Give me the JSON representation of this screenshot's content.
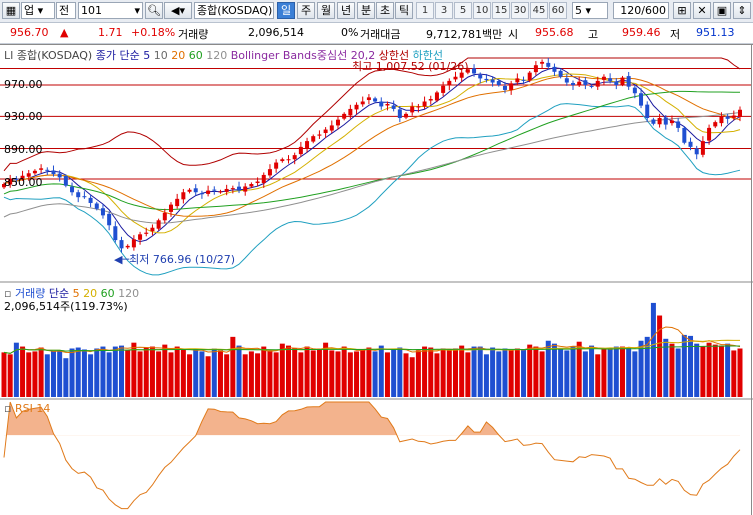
{
  "toolbar": {
    "market_label": "업",
    "prev_label": "전",
    "code_value": "101",
    "name_value": "종합(KOSDAQ)",
    "period_tabs": [
      {
        "label": "일",
        "active": true
      },
      {
        "label": "주",
        "active": false
      },
      {
        "label": "월",
        "active": false
      },
      {
        "label": "년",
        "active": false
      },
      {
        "label": "분",
        "active": false
      },
      {
        "label": "초",
        "active": false
      },
      {
        "label": "틱",
        "active": false
      }
    ],
    "interval_buttons": [
      "1",
      "3",
      "5",
      "10",
      "15",
      "30",
      "45",
      "60"
    ],
    "interval_input": "5",
    "count_value": "120/600",
    "icon_names": [
      "grid-icon",
      "wrench-icon",
      "save-icon",
      "scroll-icon"
    ]
  },
  "quote": {
    "price": "956.70",
    "change_arrow": "▲",
    "change": "1.71",
    "change_pct": "+0.18%",
    "volume_label": "거래량",
    "volume_value": "2,096,514",
    "volume_pct": "0%",
    "amount_label": "거래대금",
    "amount_value": "9,712,781백만",
    "open_label": "시",
    "open_value": "955.68",
    "high_label": "고",
    "high_value": "959.46",
    "low_label": "저",
    "low_value": "951.13"
  },
  "price_panel": {
    "legend_name": "종합(KOSDAQ)",
    "legend_ma": "종가 단순",
    "legend_ma_periods": [
      "5",
      "10",
      "20",
      "60",
      "120"
    ],
    "legend_bb": "Bollinger Bands중심선 20,2",
    "legend_upper": "상한선",
    "legend_lower": "하한선",
    "y_labels": [
      "970.00",
      "930.00",
      "890.00",
      "850.00"
    ],
    "high_annotation": "최고 1,007.52 (01/26)",
    "low_annotation": "최저 766.96 (10/27)",
    "axis_marker": "LI"
  },
  "volume_panel": {
    "legend_name": "거래량",
    "legend_ma": "단순",
    "legend_ma_periods": [
      "5",
      "20",
      "60",
      "120"
    ],
    "value_text": "2,096,514주(119.73%)"
  },
  "rsi_panel": {
    "legend_name": "RSI 14"
  },
  "colors": {
    "up": "#e00000",
    "down": "#1f4fd1",
    "ma5": "#1a1aa0",
    "ma10": "#d4b000",
    "ma20": "#e07000",
    "ma60": "#20a020",
    "ma120": "#909090",
    "bb_upper": "#b00000",
    "bb_lower": "#20a0c0",
    "rsi": "#e07a1a"
  },
  "chart_data": {
    "type": "candlestick",
    "title": "종합(KOSDAQ)",
    "price_axis_labels": [
      970,
      930,
      890,
      850
    ],
    "ylim": [
      745,
      1015
    ],
    "highest": {
      "value": 1007.52,
      "date": "01/26"
    },
    "lowest": {
      "value": 766.96,
      "date": "10/27"
    },
    "horizontal_lines": [
      990,
      970,
      932,
      893,
      856
    ],
    "close_series": [
      850,
      856,
      855,
      860,
      863,
      866,
      869,
      867,
      862,
      858,
      848,
      840,
      834,
      835,
      827,
      820,
      812,
      800,
      782,
      772,
      775,
      783,
      789,
      791,
      797,
      806,
      815,
      825,
      832,
      840,
      843,
      840,
      838,
      842,
      842,
      841,
      844,
      845,
      842,
      847,
      850,
      853,
      861,
      868,
      876,
      880,
      880,
      885,
      895,
      902,
      908,
      910,
      916,
      921,
      928,
      935,
      941,
      946,
      950,
      955,
      950,
      944,
      947,
      941,
      930,
      935,
      944,
      944,
      950,
      953,
      961,
      969,
      975,
      980,
      985,
      989,
      984,
      978,
      976,
      973,
      970,
      964,
      972,
      978,
      976,
      985,
      994,
      998,
      992,
      986,
      980,
      973,
      970,
      974,
      970,
      968,
      975,
      980,
      975,
      970,
      979,
      968,
      960,
      945,
      930,
      923,
      930,
      922,
      927,
      918,
      900,
      895,
      886,
      902,
      918,
      925,
      932,
      929,
      933,
      940
    ],
    "ma_periods": [
      5,
      10,
      20,
      60,
      120
    ],
    "bollinger": {
      "period": 20,
      "k": 2
    },
    "volume_ratio": [
      0.46,
      0.44,
      0.56,
      0.52,
      0.46,
      0.47,
      0.51,
      0.44,
      0.47,
      0.48,
      0.4,
      0.5,
      0.51,
      0.49,
      0.44,
      0.5,
      0.52,
      0.46,
      0.52,
      0.53,
      0.48,
      0.56,
      0.47,
      0.51,
      0.52,
      0.47,
      0.54,
      0.46,
      0.52,
      0.49,
      0.44,
      0.5,
      0.47,
      0.42,
      0.5,
      0.48,
      0.44,
      0.62,
      0.53,
      0.44,
      0.47,
      0.45,
      0.52,
      0.48,
      0.46,
      0.55,
      0.53,
      0.5,
      0.46,
      0.52,
      0.48,
      0.5,
      0.56,
      0.48,
      0.47,
      0.52,
      0.46,
      0.47,
      0.49,
      0.51,
      0.47,
      0.53,
      0.46,
      0.49,
      0.51,
      0.45,
      0.41,
      0.48,
      0.52,
      0.51,
      0.45,
      0.5,
      0.49,
      0.5,
      0.53,
      0.46,
      0.52,
      0.52,
      0.44,
      0.51,
      0.47,
      0.5,
      0.48,
      0.5,
      0.49,
      0.54,
      0.52,
      0.47,
      0.58,
      0.55,
      0.49,
      0.48,
      0.52,
      0.57,
      0.47,
      0.53,
      0.44,
      0.5,
      0.51,
      0.52,
      0.52,
      0.51,
      0.47,
      0.58,
      0.62,
      0.97,
      0.84,
      0.6,
      0.55,
      0.5,
      0.64,
      0.63,
      0.55,
      0.52,
      0.56,
      0.54,
      0.53,
      0.55,
      0.48,
      0.5
    ],
    "volume_text": "2,096,514주(119.73%)",
    "rsi_period": 14
  }
}
